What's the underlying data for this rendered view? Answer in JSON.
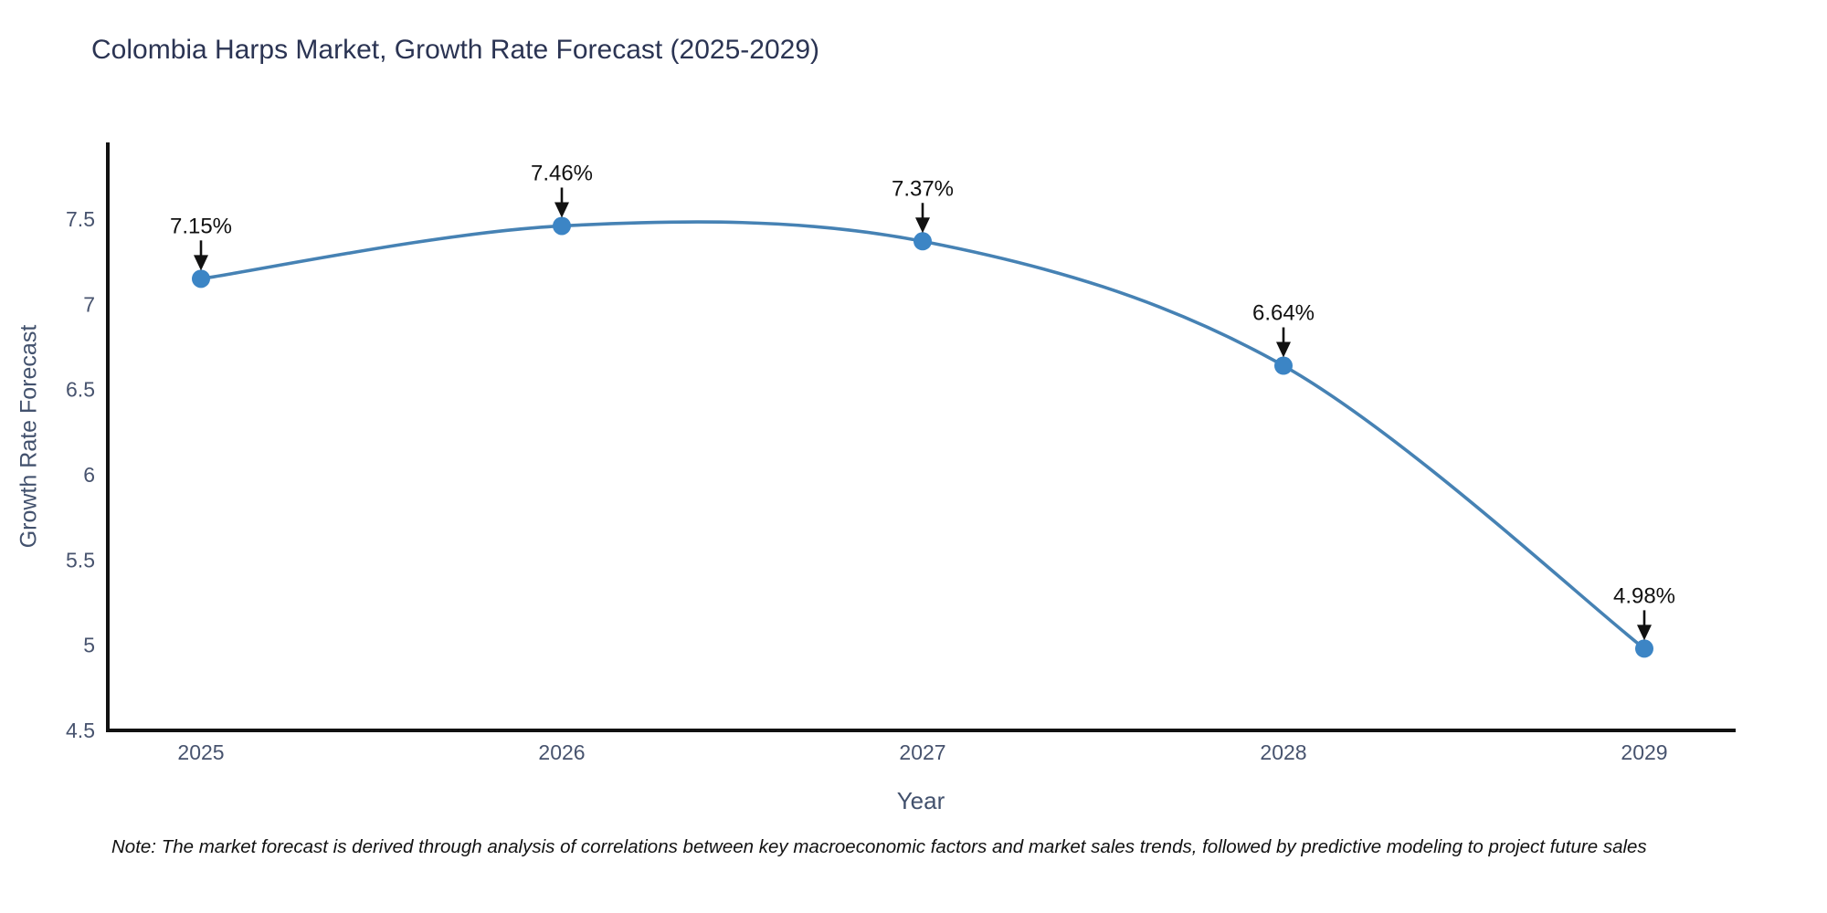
{
  "chart_data": {
    "type": "line",
    "title": "Colombia Harps Market, Growth Rate Forecast (2025-2029)",
    "xlabel": "Year",
    "ylabel": "Growth Rate Forecast",
    "categories": [
      "2025",
      "2026",
      "2027",
      "2028",
      "2029"
    ],
    "series": [
      {
        "name": "Growth Rate Forecast",
        "values": [
          7.15,
          7.46,
          7.37,
          6.64,
          4.98
        ],
        "point_labels": [
          "7.15%",
          "7.46%",
          "7.37%",
          "6.64%",
          "4.98%"
        ]
      }
    ],
    "y_ticks": [
      4.5,
      5,
      5.5,
      6,
      6.5,
      7,
      7.5
    ],
    "ylim": [
      4.5,
      7.95
    ],
    "line_shape": "spline",
    "grid": false,
    "legend_position": "none",
    "colors": {
      "line": "#4682b4",
      "marker": "#3c85c5",
      "axis_line": "#111111",
      "tick_label": "#47536e",
      "annotation": "#111111",
      "title": "#2b3453"
    }
  },
  "note": {
    "text": "Note: The market forecast is derived through analysis of correlations between key macroeconomic factors and market sales trends, followed by predictive modeling to project future sales"
  }
}
